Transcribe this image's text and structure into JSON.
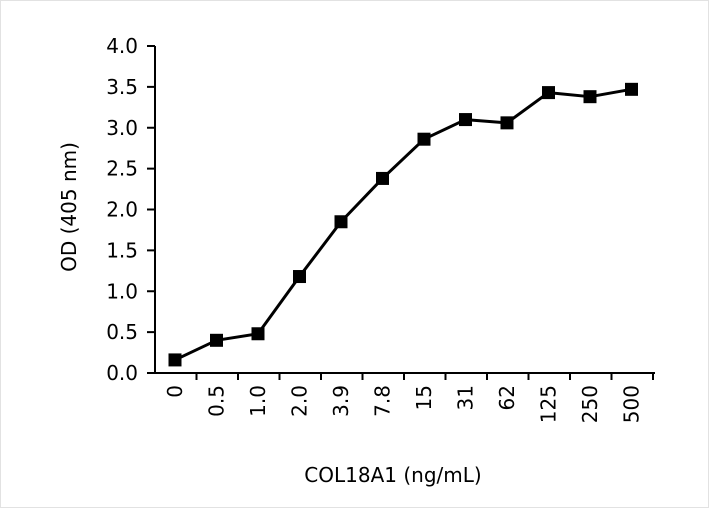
{
  "chart_data": {
    "type": "line",
    "title": "",
    "xlabel": "COL18A1 (ng/mL)",
    "ylabel": "OD (405 nm)",
    "categories": [
      "0",
      "0.5",
      "1.0",
      "2.0",
      "3.9",
      "7.8",
      "15",
      "31",
      "62",
      "125",
      "250",
      "500"
    ],
    "series": [
      {
        "values": [
          0.16,
          0.4,
          0.48,
          1.18,
          1.85,
          2.38,
          2.86,
          3.1,
          3.06,
          3.43,
          3.38,
          3.47
        ],
        "marker": "square",
        "color": "#000000"
      }
    ],
    "ylim": [
      0,
      4.0
    ],
    "yticks": [
      "0.0",
      "0.5",
      "1.0",
      "1.5",
      "2.0",
      "2.5",
      "3.0",
      "3.5",
      "4.0"
    ],
    "grid": false,
    "legend": "none"
  }
}
